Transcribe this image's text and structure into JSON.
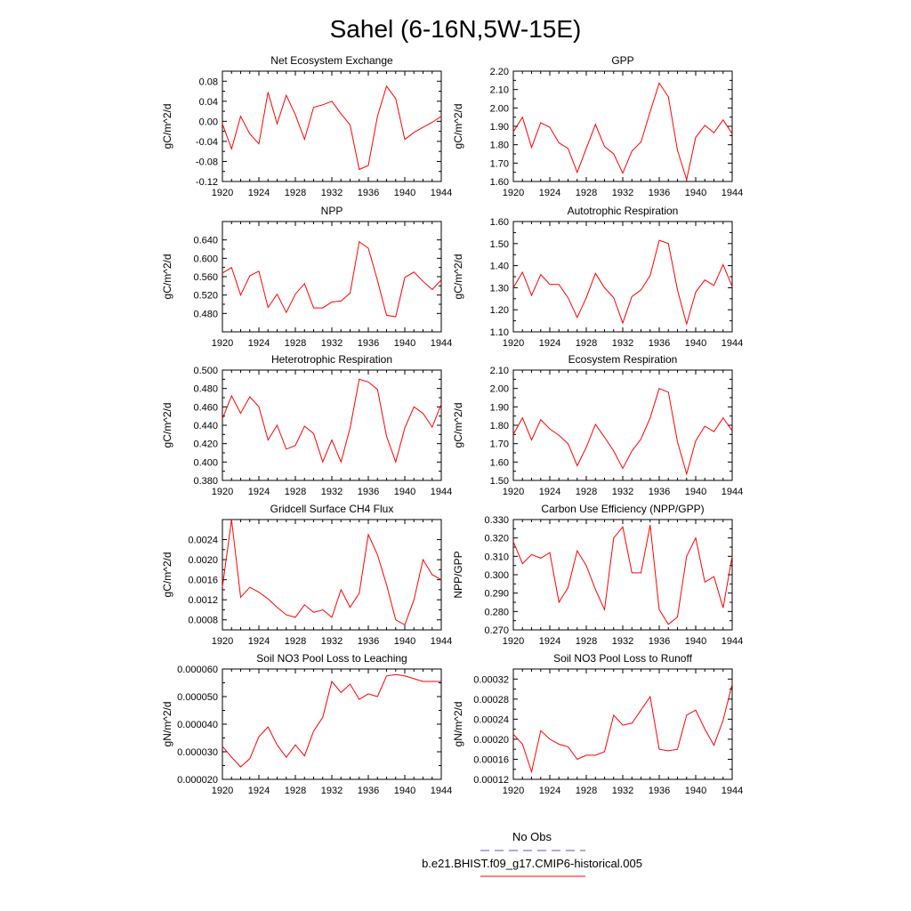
{
  "figure": {
    "title": "Sahel (6-16N,5W-15E)",
    "line_color": "#ff0000",
    "legend": [
      {
        "label": "No Obs",
        "color": "#5555cc",
        "style": "dashed"
      },
      {
        "label": "b.e21.BHIST.f09_g17.CMIP6-historical.005",
        "color": "#ff0000",
        "style": "solid"
      }
    ]
  },
  "chart_data": [
    {
      "type": "line",
      "title": "Net Ecosystem Exchange",
      "xlabel": "",
      "ylabel": "gC/m^2/d",
      "xlim": [
        1920,
        1944
      ],
      "ylim": [
        -0.12,
        0.1
      ],
      "xticks": [
        "1920",
        "1924",
        "1928",
        "1932",
        "1936",
        "1940",
        "1944"
      ],
      "yticks": [
        -0.12,
        -0.08,
        -0.04,
        0.0,
        0.04,
        0.08
      ],
      "ytick_labels": [
        "-0.12",
        "-0.08",
        "-0.04",
        "0.00",
        "0.04",
        "0.08"
      ],
      "x": [
        1920,
        1921,
        1922,
        1923,
        1924,
        1925,
        1926,
        1927,
        1928,
        1929,
        1930,
        1931,
        1932,
        1933,
        1934,
        1935,
        1936,
        1937,
        1938,
        1939,
        1940,
        1941,
        1942,
        1943,
        1944
      ],
      "y": [
        -0.005,
        -0.055,
        0.01,
        -0.025,
        -0.045,
        0.058,
        -0.005,
        0.052,
        0.013,
        -0.036,
        0.028,
        0.033,
        0.04,
        0.015,
        -0.007,
        -0.096,
        -0.088,
        0.01,
        0.07,
        0.045,
        -0.036,
        -0.022,
        -0.012,
        -0.002,
        0.01
      ]
    },
    {
      "type": "line",
      "title": "GPP",
      "xlabel": "",
      "ylabel": "gC/m^2/d",
      "xlim": [
        1920,
        1944
      ],
      "ylim": [
        1.6,
        2.2
      ],
      "xticks": [
        "1920",
        "1924",
        "1928",
        "1932",
        "1936",
        "1940",
        "1944"
      ],
      "yticks": [
        1.6,
        1.7,
        1.8,
        1.9,
        2.0,
        2.1,
        2.2
      ],
      "ytick_labels": [
        "1.60",
        "1.70",
        "1.80",
        "1.90",
        "2.00",
        "2.10",
        "2.20"
      ],
      "x": [
        1920,
        1921,
        1922,
        1923,
        1924,
        1925,
        1926,
        1927,
        1928,
        1929,
        1930,
        1931,
        1932,
        1933,
        1934,
        1935,
        1936,
        1937,
        1938,
        1939,
        1940,
        1941,
        1942,
        1943,
        1944
      ],
      "y": [
        1.87,
        1.95,
        1.785,
        1.92,
        1.895,
        1.81,
        1.78,
        1.65,
        1.78,
        1.91,
        1.79,
        1.75,
        1.645,
        1.765,
        1.815,
        1.98,
        2.135,
        2.06,
        1.77,
        1.61,
        1.84,
        1.905,
        1.865,
        1.935,
        1.86
      ]
    },
    {
      "type": "line",
      "title": "NPP",
      "xlabel": "",
      "ylabel": "gC/m^2/d",
      "xlim": [
        1920,
        1944
      ],
      "ylim": [
        0.44,
        0.68
      ],
      "xticks": [
        "1920",
        "1924",
        "1928",
        "1932",
        "1936",
        "1940",
        "1944"
      ],
      "yticks": [
        0.48,
        0.52,
        0.56,
        0.6,
        0.64
      ],
      "ytick_labels": [
        "0.480",
        "0.520",
        "0.560",
        "0.600",
        "0.640"
      ],
      "x": [
        1920,
        1921,
        1922,
        1923,
        1924,
        1925,
        1926,
        1927,
        1928,
        1929,
        1930,
        1931,
        1932,
        1933,
        1934,
        1935,
        1936,
        1937,
        1938,
        1939,
        1940,
        1941,
        1942,
        1943,
        1944
      ],
      "y": [
        0.568,
        0.58,
        0.52,
        0.562,
        0.572,
        0.493,
        0.522,
        0.482,
        0.522,
        0.545,
        0.492,
        0.492,
        0.505,
        0.507,
        0.524,
        0.636,
        0.622,
        0.552,
        0.476,
        0.473,
        0.558,
        0.57,
        0.55,
        0.532,
        0.553
      ]
    },
    {
      "type": "line",
      "title": "Autotrophic Respiration",
      "xlabel": "",
      "ylabel": "gC/m^2/d",
      "xlim": [
        1920,
        1944
      ],
      "ylim": [
        1.1,
        1.6
      ],
      "xticks": [
        "1920",
        "1924",
        "1928",
        "1932",
        "1936",
        "1940",
        "1944"
      ],
      "yticks": [
        1.1,
        1.2,
        1.3,
        1.4,
        1.5,
        1.6
      ],
      "ytick_labels": [
        "1.10",
        "1.20",
        "1.30",
        "1.40",
        "1.50",
        "1.60"
      ],
      "x": [
        1920,
        1921,
        1922,
        1923,
        1924,
        1925,
        1926,
        1927,
        1928,
        1929,
        1930,
        1931,
        1932,
        1933,
        1934,
        1935,
        1936,
        1937,
        1938,
        1939,
        1940,
        1941,
        1942,
        1943,
        1944
      ],
      "y": [
        1.3,
        1.37,
        1.265,
        1.36,
        1.315,
        1.315,
        1.255,
        1.165,
        1.255,
        1.365,
        1.3,
        1.255,
        1.14,
        1.26,
        1.29,
        1.355,
        1.515,
        1.5,
        1.29,
        1.135,
        1.28,
        1.335,
        1.31,
        1.405,
        1.305
      ]
    },
    {
      "type": "line",
      "title": "Heterotrophic Respiration",
      "xlabel": "",
      "ylabel": "gC/m^2/d",
      "xlim": [
        1920,
        1944
      ],
      "ylim": [
        0.38,
        0.5
      ],
      "xticks": [
        "1920",
        "1924",
        "1928",
        "1932",
        "1936",
        "1940",
        "1944"
      ],
      "yticks": [
        0.38,
        0.4,
        0.42,
        0.44,
        0.46,
        0.48,
        0.5
      ],
      "ytick_labels": [
        "0.380",
        "0.400",
        "0.420",
        "0.440",
        "0.460",
        "0.480",
        "0.500"
      ],
      "x": [
        1920,
        1921,
        1922,
        1923,
        1924,
        1925,
        1926,
        1927,
        1928,
        1929,
        1930,
        1931,
        1932,
        1933,
        1934,
        1935,
        1936,
        1937,
        1938,
        1939,
        1940,
        1941,
        1942,
        1943,
        1944
      ],
      "y": [
        0.447,
        0.472,
        0.453,
        0.471,
        0.46,
        0.424,
        0.44,
        0.414,
        0.418,
        0.439,
        0.431,
        0.4,
        0.424,
        0.4,
        0.437,
        0.49,
        0.487,
        0.479,
        0.428,
        0.4,
        0.437,
        0.46,
        0.453,
        0.438,
        0.463
      ]
    },
    {
      "type": "line",
      "title": "Ecosystem Respiration",
      "xlabel": "",
      "ylabel": "gC/m^2/d",
      "xlim": [
        1920,
        1944
      ],
      "ylim": [
        1.5,
        2.1
      ],
      "xticks": [
        "1920",
        "1924",
        "1928",
        "1932",
        "1936",
        "1940",
        "1944"
      ],
      "yticks": [
        1.5,
        1.6,
        1.7,
        1.8,
        1.9,
        2.0,
        2.1
      ],
      "ytick_labels": [
        "1.50",
        "1.60",
        "1.70",
        "1.80",
        "1.90",
        "2.00",
        "2.10"
      ],
      "x": [
        1920,
        1921,
        1922,
        1923,
        1924,
        1925,
        1926,
        1927,
        1928,
        1929,
        1930,
        1931,
        1932,
        1933,
        1934,
        1935,
        1936,
        1937,
        1938,
        1939,
        1940,
        1941,
        1942,
        1943,
        1944
      ],
      "y": [
        1.75,
        1.84,
        1.72,
        1.83,
        1.78,
        1.745,
        1.7,
        1.58,
        1.68,
        1.805,
        1.735,
        1.66,
        1.565,
        1.66,
        1.725,
        1.84,
        2.0,
        1.98,
        1.71,
        1.535,
        1.715,
        1.795,
        1.765,
        1.84,
        1.77
      ]
    },
    {
      "type": "line",
      "title": "Gridcell Surface CH4 Flux",
      "xlabel": "",
      "ylabel": "gC/m^2/d",
      "xlim": [
        1920,
        1944
      ],
      "ylim": [
        0.0006,
        0.0028
      ],
      "xticks": [
        "1920",
        "1924",
        "1928",
        "1932",
        "1936",
        "1940",
        "1944"
      ],
      "yticks": [
        0.0008,
        0.0012,
        0.0016,
        0.002,
        0.0024
      ],
      "ytick_labels": [
        "0.0008",
        "0.0012",
        "0.0016",
        "0.0020",
        "0.0024"
      ],
      "x": [
        1920,
        1921,
        1922,
        1923,
        1924,
        1925,
        1926,
        1927,
        1928,
        1929,
        1930,
        1931,
        1932,
        1933,
        1934,
        1935,
        1936,
        1937,
        1938,
        1939,
        1940,
        1941,
        1942,
        1943,
        1944
      ],
      "y": [
        0.00145,
        0.0028,
        0.00125,
        0.00145,
        0.00135,
        0.00122,
        0.00105,
        0.0009,
        0.00085,
        0.0011,
        0.00095,
        0.001,
        0.00085,
        0.0014,
        0.00105,
        0.00133,
        0.0025,
        0.0021,
        0.0015,
        0.0008,
        0.0007,
        0.0012,
        0.002,
        0.0017,
        0.0016
      ]
    },
    {
      "type": "line",
      "title": "Carbon Use Efficiency (NPP/GPP)",
      "xlabel": "",
      "ylabel": "NPP/GPP",
      "xlim": [
        1920,
        1944
      ],
      "ylim": [
        0.27,
        0.33
      ],
      "xticks": [
        "1920",
        "1924",
        "1928",
        "1932",
        "1936",
        "1940",
        "1944"
      ],
      "yticks": [
        0.27,
        0.28,
        0.29,
        0.3,
        0.31,
        0.32,
        0.33
      ],
      "ytick_labels": [
        "0.270",
        "0.280",
        "0.290",
        "0.300",
        "0.310",
        "0.320",
        "0.330"
      ],
      "x": [
        1920,
        1921,
        1922,
        1923,
        1924,
        1925,
        1926,
        1927,
        1928,
        1929,
        1930,
        1931,
        1932,
        1933,
        1934,
        1935,
        1936,
        1937,
        1938,
        1939,
        1940,
        1941,
        1942,
        1943,
        1944
      ],
      "y": [
        0.318,
        0.306,
        0.311,
        0.309,
        0.312,
        0.285,
        0.293,
        0.313,
        0.305,
        0.292,
        0.281,
        0.32,
        0.326,
        0.301,
        0.301,
        0.327,
        0.281,
        0.273,
        0.277,
        0.31,
        0.32,
        0.296,
        0.299,
        0.282,
        0.31
      ]
    },
    {
      "type": "line",
      "title": "Soil NO3 Pool Loss to Leaching",
      "xlabel": "",
      "ylabel": "gN/m^2/d",
      "xlim": [
        1920,
        1944
      ],
      "ylim": [
        2e-05,
        6e-05
      ],
      "xticks": [
        "1920",
        "1924",
        "1928",
        "1932",
        "1936",
        "1940",
        "1944"
      ],
      "yticks": [
        2e-05,
        3e-05,
        4e-05,
        5e-05,
        6e-05
      ],
      "ytick_labels": [
        "0.000020",
        "0.000030",
        "0.000040",
        "0.000050",
        "0.000060"
      ],
      "x": [
        1920,
        1921,
        1922,
        1923,
        1924,
        1925,
        1926,
        1927,
        1928,
        1929,
        1930,
        1931,
        1932,
        1933,
        1934,
        1935,
        1936,
        1937,
        1938,
        1939,
        1940,
        1941,
        1942,
        1943,
        1944
      ],
      "y": [
        3.2e-05,
        2.8e-05,
        2.45e-05,
        2.75e-05,
        3.55e-05,
        3.9e-05,
        3.25e-05,
        2.8e-05,
        3.25e-05,
        2.85e-05,
        3.75e-05,
        4.25e-05,
        5.55e-05,
        5.15e-05,
        5.45e-05,
        4.9e-05,
        5.1e-05,
        5e-05,
        5.75e-05,
        5.8e-05,
        5.75e-05,
        5.65e-05,
        5.55e-05,
        5.55e-05,
        5.55e-05
      ]
    },
    {
      "type": "line",
      "title": "Soil NO3 Pool Loss to Runoff",
      "xlabel": "",
      "ylabel": "gN/m^2/d",
      "xlim": [
        1920,
        1944
      ],
      "ylim": [
        0.00012,
        0.00034
      ],
      "xticks": [
        "1920",
        "1924",
        "1928",
        "1932",
        "1936",
        "1940",
        "1944"
      ],
      "yticks": [
        0.00012,
        0.00016,
        0.0002,
        0.00024,
        0.00028,
        0.00032
      ],
      "ytick_labels": [
        "0.00012",
        "0.00016",
        "0.00020",
        "0.00024",
        "0.00028",
        "0.00032"
      ],
      "x": [
        1920,
        1921,
        1922,
        1923,
        1924,
        1925,
        1926,
        1927,
        1928,
        1929,
        1930,
        1931,
        1932,
        1933,
        1934,
        1935,
        1936,
        1937,
        1938,
        1939,
        1940,
        1941,
        1942,
        1943,
        1944
      ],
      "y": [
        0.00021,
        0.00019,
        0.000135,
        0.000217,
        0.0002,
        0.00019,
        0.000185,
        0.00016,
        0.000168,
        0.000168,
        0.000175,
        0.000248,
        0.000228,
        0.000232,
        0.000258,
        0.000285,
        0.00018,
        0.000177,
        0.00018,
        0.000248,
        0.000258,
        0.00022,
        0.000188,
        0.000238,
        0.00031
      ]
    }
  ]
}
